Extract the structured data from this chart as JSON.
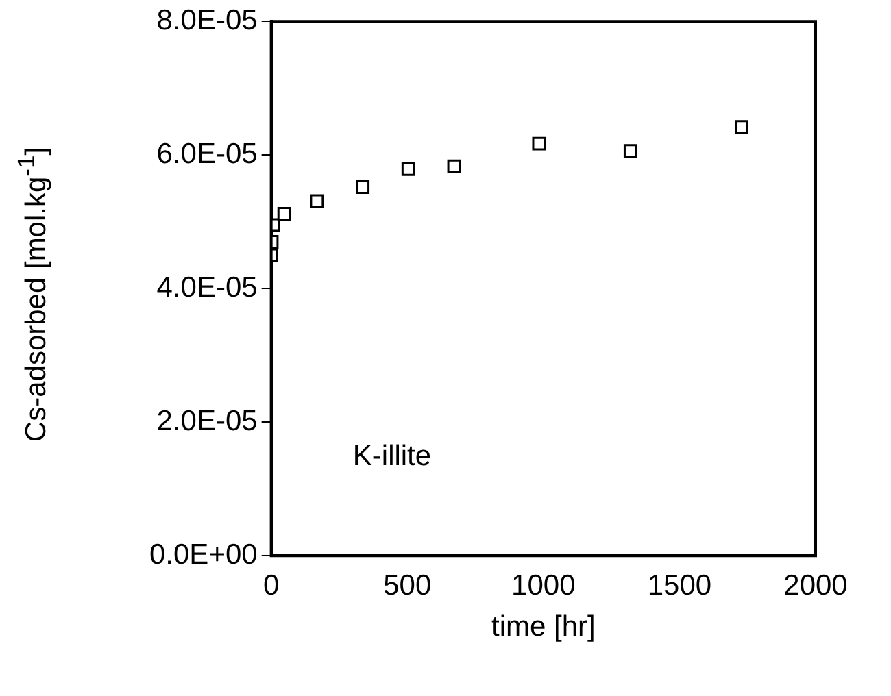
{
  "chart_data": {
    "type": "scatter",
    "xlabel": "time [hr]",
    "ylabel": "Cs-adsorbed [mol.kg$^{-1}$]",
    "x": [
      1,
      2,
      4,
      6,
      24,
      48,
      168,
      336,
      504,
      672,
      984,
      1320,
      1728
    ],
    "series": [
      {
        "color": "#000000",
        "values": [
          4.5e-05,
          4.7e-05,
          null,
          4.95e-05,
          null,
          5.12e-05,
          5.31e-05,
          5.52e-05,
          5.79e-05,
          5.83e-05,
          6.17e-05,
          6.06e-05,
          6.42e-05
        ]
      }
    ],
    "marker": "square",
    "xlim": [
      0,
      2000
    ],
    "xticks": [
      0,
      500,
      1000,
      1500,
      2000
    ],
    "ylim": [
      0,
      8e-05
    ],
    "yticks": [
      {
        "value": 0,
        "label": "0.0E+00"
      },
      {
        "value": 2e-05,
        "label": "2.0E-05"
      },
      {
        "value": 4e-05,
        "label": "4.0E-05"
      },
      {
        "value": 6e-05,
        "label": "6.0E-05"
      },
      {
        "value": 8e-05,
        "label": "8.0E-05"
      }
    ],
    "annotations": [
      "K-illite"
    ],
    "grid": false,
    "legend": false
  }
}
